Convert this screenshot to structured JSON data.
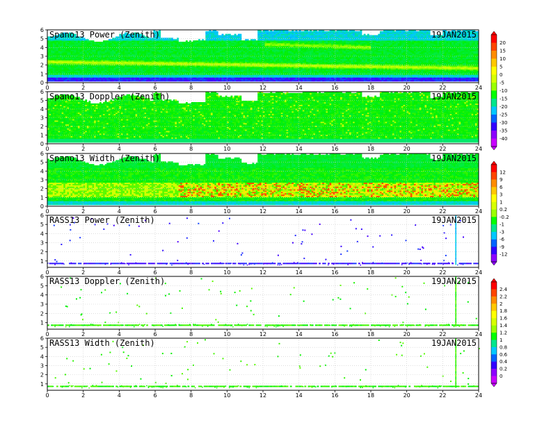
{
  "chart_data": [
    {
      "type": "heatmap",
      "title": "Spano13 Power (Zenith)",
      "date": "19JAN2015",
      "x_ticks": [
        "0",
        "2",
        "4",
        "6",
        "8",
        "10",
        "12",
        "14",
        "16",
        "18",
        "20",
        "22",
        "24"
      ],
      "y_ticks": [
        "0",
        "1",
        "2",
        "3",
        "4",
        "5",
        "6"
      ],
      "xlim": [
        0,
        24
      ],
      "ylim": [
        0,
        6
      ],
      "grid": true
    },
    {
      "type": "heatmap",
      "title": "Spano13 Doppler (Zenith)",
      "date": "19JAN2015",
      "x_ticks": [
        "0",
        "2",
        "4",
        "6",
        "8",
        "10",
        "12",
        "14",
        "16",
        "18",
        "20",
        "22",
        "24"
      ],
      "y_ticks": [
        "0",
        "1",
        "2",
        "3",
        "4",
        "5",
        "6"
      ],
      "xlim": [
        0,
        24
      ],
      "ylim": [
        0,
        6
      ],
      "grid": true
    },
    {
      "type": "heatmap",
      "title": "Spano13 Width (Zenith)",
      "date": "19JAN2015",
      "x_ticks": [
        "0",
        "2",
        "4",
        "6",
        "8",
        "10",
        "12",
        "14",
        "16",
        "18",
        "20",
        "22",
        "24"
      ],
      "y_ticks": [
        "0",
        "1",
        "2",
        "3",
        "4",
        "5",
        "6"
      ],
      "xlim": [
        0,
        24
      ],
      "ylim": [
        0,
        6
      ],
      "grid": true
    },
    {
      "type": "heatmap",
      "title": "RASS13 Power (Zenith)",
      "date": "19JAN2015",
      "x_ticks": [
        "0",
        "2",
        "4",
        "6",
        "8",
        "10",
        "12",
        "14",
        "16",
        "18",
        "20",
        "22",
        "24"
      ],
      "y_ticks": [
        "1",
        "2",
        "3",
        "4",
        "5",
        "6"
      ],
      "xlim": [
        0,
        24
      ],
      "ylim": [
        0.3,
        6
      ],
      "grid": true
    },
    {
      "type": "heatmap",
      "title": "RASS13 Doppler (Zenith)",
      "date": "19JAN2015",
      "x_ticks": [
        "0",
        "2",
        "4",
        "6",
        "8",
        "10",
        "12",
        "14",
        "16",
        "18",
        "20",
        "22",
        "24"
      ],
      "y_ticks": [
        "1",
        "2",
        "3",
        "4",
        "5",
        "6"
      ],
      "xlim": [
        0,
        24
      ],
      "ylim": [
        0.3,
        6
      ],
      "grid": true
    },
    {
      "type": "heatmap",
      "title": "RASS13 Width (Zenith)",
      "date": "19JAN2015",
      "x_ticks": [
        "0",
        "2",
        "4",
        "6",
        "8",
        "10",
        "12",
        "14",
        "16",
        "18",
        "20",
        "22",
        "24"
      ],
      "y_ticks": [
        "1",
        "2",
        "3",
        "4",
        "5",
        "6"
      ],
      "xlim": [
        0,
        24
      ],
      "ylim": [
        0.3,
        6
      ],
      "grid": true
    }
  ],
  "colorbars": [
    {
      "labels": [
        "20",
        "15",
        "10",
        "5",
        "0",
        "-5",
        "-10",
        "-15",
        "-20",
        "-25",
        "-30",
        "-35",
        "-40"
      ],
      "colors": [
        "#ff0000",
        "#ff4500",
        "#ff8c00",
        "#ffc800",
        "#ffff00",
        "#d7ff00",
        "#9bff00",
        "#00ff00",
        "#00e68c",
        "#00c8ff",
        "#0064ff",
        "#3200ff",
        "#8c00ff",
        "#c800ff"
      ]
    },
    {
      "labels": [
        "12",
        "9",
        "6",
        "3",
        "1",
        "0.2",
        "-0.2",
        "-1",
        "-3",
        "-6",
        "-9",
        "-12"
      ],
      "colors": [
        "#ff0000",
        "#ff4500",
        "#ff8c00",
        "#ffc800",
        "#ffff00",
        "#d7ff00",
        "#9bff00",
        "#00ff00",
        "#00e68c",
        "#00c8ff",
        "#0064ff",
        "#3200ff",
        "#8c00ff"
      ]
    },
    {
      "labels": [
        "2.4",
        "2.2",
        "2",
        "1.8",
        "1.6",
        "1.4",
        "1.2",
        "1",
        "0.8",
        "0.6",
        "0.4",
        "0.2",
        "0"
      ],
      "colors": [
        "#ff0000",
        "#ff4500",
        "#ff8c00",
        "#ffc800",
        "#ffff00",
        "#d7ff00",
        "#9bff00",
        "#00ff00",
        "#00e68c",
        "#00c8ff",
        "#0064ff",
        "#3200ff",
        "#8c00ff",
        "#c800ff"
      ]
    }
  ]
}
